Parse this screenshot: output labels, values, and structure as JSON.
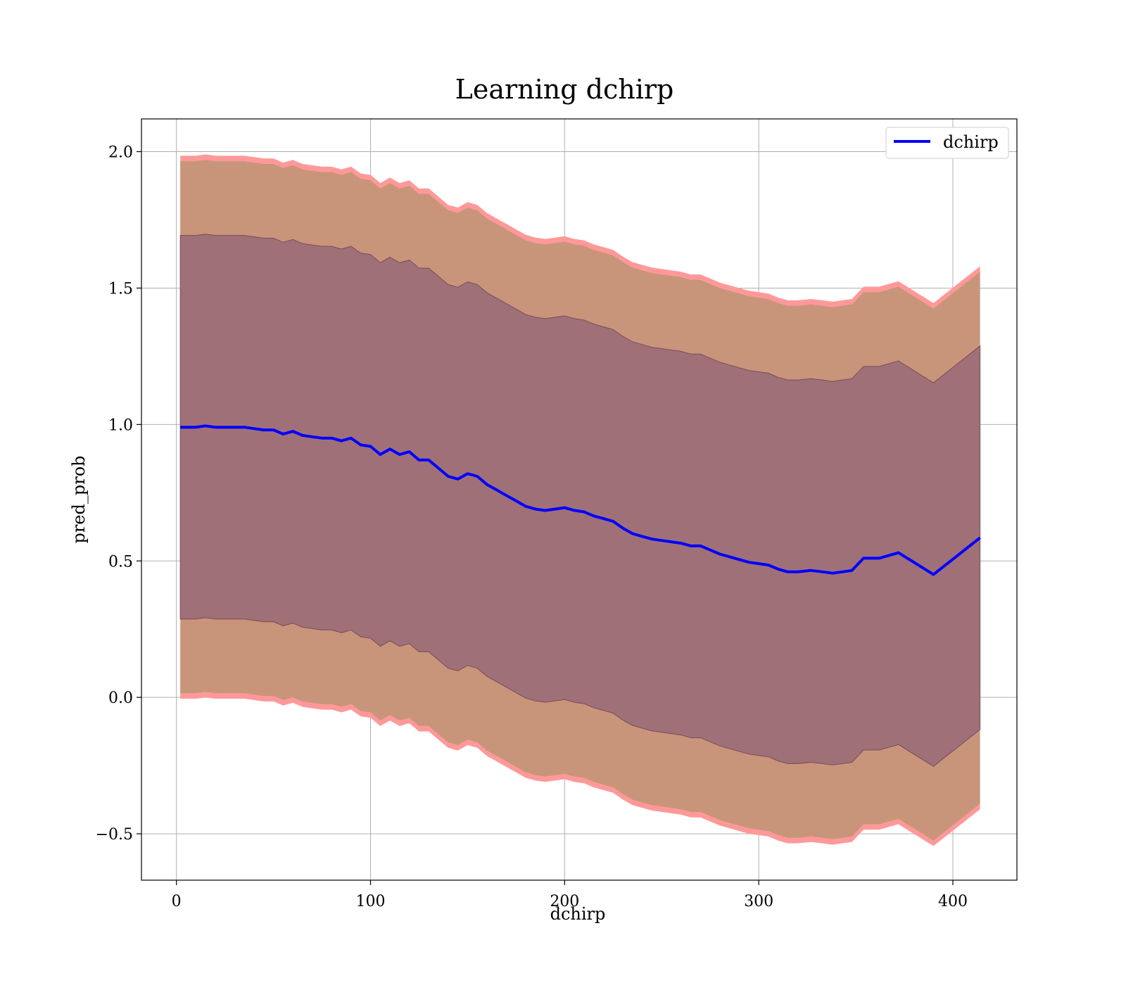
{
  "chart_data": {
    "type": "line",
    "title": "Learning dchirp",
    "xlabel": "dchirp",
    "ylabel": "pred_prob",
    "xlim": [
      -18,
      433
    ],
    "ylim": [
      -0.67,
      2.12
    ],
    "xticks": [
      0,
      100,
      200,
      300,
      400
    ],
    "yticks": [
      -0.5,
      0.0,
      0.5,
      1.0,
      1.5,
      2.0
    ],
    "xtick_labels": [
      "0",
      "100",
      "200",
      "300",
      "400"
    ],
    "ytick_labels": [
      "−0.5",
      "0.0",
      "0.5",
      "1.0",
      "1.5",
      "2.0"
    ],
    "grid": true,
    "legend": {
      "position": "upper-right",
      "entries": [
        "dchirp"
      ]
    },
    "colors": {
      "line": "#0000ff",
      "outer_band": "#ff9999",
      "middle_band": "#c8957a",
      "inner_band": "#a07078",
      "inner_band_edge": "#7a4a5a"
    },
    "series": [
      {
        "name": "dchirp",
        "x": [
          2,
          10,
          15,
          20,
          25,
          30,
          35,
          40,
          45,
          50,
          55,
          60,
          65,
          70,
          75,
          80,
          85,
          90,
          95,
          100,
          105,
          110,
          115,
          120,
          125,
          130,
          135,
          140,
          145,
          150,
          155,
          160,
          165,
          170,
          175,
          180,
          185,
          190,
          195,
          200,
          205,
          210,
          215,
          220,
          225,
          230,
          235,
          240,
          245,
          250,
          255,
          260,
          265,
          270,
          275,
          280,
          285,
          290,
          295,
          300,
          305,
          310,
          315,
          320,
          327,
          333,
          338,
          343,
          348,
          354,
          362,
          372,
          390,
          414
        ],
        "y": [
          0.99,
          0.99,
          0.995,
          0.99,
          0.99,
          0.99,
          0.99,
          0.985,
          0.98,
          0.98,
          0.965,
          0.975,
          0.96,
          0.955,
          0.95,
          0.95,
          0.94,
          0.95,
          0.925,
          0.92,
          0.89,
          0.91,
          0.89,
          0.9,
          0.87,
          0.87,
          0.84,
          0.81,
          0.8,
          0.82,
          0.81,
          0.78,
          0.76,
          0.74,
          0.72,
          0.7,
          0.69,
          0.685,
          0.69,
          0.695,
          0.685,
          0.68,
          0.665,
          0.655,
          0.645,
          0.62,
          0.6,
          0.59,
          0.58,
          0.575,
          0.57,
          0.565,
          0.555,
          0.555,
          0.54,
          0.525,
          0.515,
          0.505,
          0.495,
          0.49,
          0.485,
          0.47,
          0.46,
          0.46,
          0.465,
          0.46,
          0.455,
          0.46,
          0.465,
          0.51,
          0.51,
          0.53,
          0.45,
          0.585
        ]
      }
    ],
    "bands": {
      "inner_halfwidth": 0.703,
      "middle_halfwidth": 0.975,
      "outer_halfwidth": 0.995
    }
  }
}
